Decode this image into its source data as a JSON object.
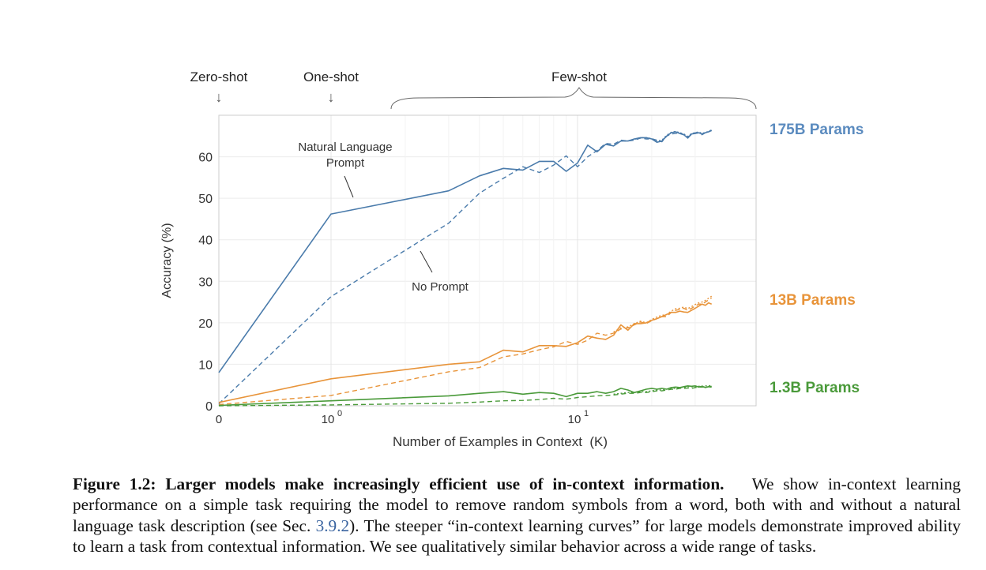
{
  "chart_data": {
    "type": "line",
    "xlabel": "Number of Examples in Context  (K)",
    "ylabel": "Accuracy (%)",
    "x_scale": "symlog",
    "xlim": [
      0,
      35
    ],
    "ylim": [
      0,
      70
    ],
    "y_ticks": [
      0,
      10,
      20,
      30,
      40,
      50,
      60
    ],
    "x_ticks": [
      {
        "value": 0,
        "base": "0",
        "exp": ""
      },
      {
        "value": 1,
        "base": "10",
        "exp": "0"
      },
      {
        "value": 10,
        "base": "10",
        "exp": "1"
      }
    ],
    "grid": true,
    "regions": [
      {
        "label": "Zero-shot",
        "x": 0,
        "marker": "↓"
      },
      {
        "label": "One-shot",
        "x": 1,
        "marker": "↓"
      },
      {
        "label": "Few-shot",
        "x_range": [
          2,
          35
        ]
      }
    ],
    "annotations": [
      {
        "text_lines": [
          "Natural Language",
          "Prompt"
        ]
      },
      {
        "text_lines": [
          "No Prompt"
        ]
      }
    ],
    "models": [
      {
        "name": "175B Params",
        "color": "#4a7bab",
        "label_color": "#5b8bbf",
        "series": [
          {
            "style": "solid",
            "x": [
              0,
              1,
              3,
              4,
              5,
              6,
              7,
              8,
              9,
              10,
              11,
              12,
              13,
              14,
              15,
              16,
              17,
              18,
              19,
              20,
              21,
              22,
              23,
              24,
              25,
              26,
              27,
              28,
              29,
              30,
              31,
              32,
              33,
              34,
              35
            ],
            "y": [
              8,
              46.2,
              51.8,
              55.4,
              57.2,
              56.8,
              58.9,
              58.9,
              56.5,
              58.5,
              62.8,
              61.2,
              63.0,
              62.6,
              63.8,
              63.8,
              64.3,
              64.6,
              64.6,
              64.3,
              63.5,
              63.8,
              65.0,
              65.8,
              66.0,
              65.6,
              65.3,
              64.5,
              65.5,
              65.6,
              65.8,
              65.5,
              65.8,
              66.0,
              66.4
            ]
          },
          {
            "style": "dashed",
            "x": [
              0,
              1,
              3,
              4,
              5,
              6,
              7,
              8,
              9,
              10,
              11,
              12,
              13,
              14,
              15,
              16,
              17,
              18,
              19,
              20,
              21,
              22,
              23,
              24,
              25,
              26,
              27,
              28,
              29,
              30,
              31,
              32,
              33,
              34,
              35
            ],
            "y": [
              0.5,
              26.3,
              44.0,
              51.2,
              54.8,
              57.6,
              56.2,
              58.0,
              60.2,
              57.6,
              60.0,
              61.5,
              63.2,
              63.0,
              64.0,
              63.8,
              64.0,
              64.5,
              64.3,
              64.3,
              64.0,
              63.6,
              65.0,
              65.5,
              65.6,
              65.8,
              65.3,
              64.8,
              65.3,
              65.8,
              65.7,
              65.3,
              65.8,
              66.0,
              66.3
            ]
          },
          {
            "style": "dotted",
            "x": [
              15,
              16,
              17,
              18,
              19,
              20,
              21,
              22,
              23,
              24,
              25,
              26,
              27,
              28,
              29,
              30,
              31,
              32,
              33,
              34,
              35
            ],
            "y": [
              63.8,
              63.8,
              64.2,
              64.6,
              64.6,
              64.4,
              63.8,
              64.0,
              65.2,
              65.9,
              66.1,
              65.8,
              65.5,
              64.9,
              65.6,
              65.8,
              66.0,
              65.6,
              65.9,
              66.1,
              66.5
            ]
          }
        ]
      },
      {
        "name": "13B Params",
        "color": "#e8943a",
        "label_color": "#e8943a",
        "series": [
          {
            "style": "solid",
            "x": [
              0,
              1,
              3,
              4,
              5,
              6,
              7,
              8,
              9,
              10,
              11,
              12,
              13,
              14,
              15,
              16,
              17,
              18,
              19,
              20,
              21,
              22,
              23,
              24,
              25,
              26,
              27,
              28,
              29,
              30,
              31,
              32,
              33,
              34,
              35
            ],
            "y": [
              0.8,
              6.5,
              10.0,
              10.6,
              13.4,
              13.0,
              14.5,
              14.5,
              14.3,
              15.2,
              16.8,
              16.3,
              16.0,
              17.0,
              19.5,
              18.2,
              19.8,
              19.8,
              20.0,
              20.6,
              21.0,
              21.5,
              22.0,
              22.5,
              22.5,
              22.8,
              22.6,
              22.5,
              23.0,
              23.5,
              24.0,
              24.5,
              24.2,
              24.8,
              24.5
            ]
          },
          {
            "style": "dashed",
            "x": [
              0,
              1,
              3,
              4,
              5,
              6,
              7,
              8,
              9,
              10,
              11,
              12,
              13,
              14,
              15,
              16,
              17,
              18,
              19,
              20,
              21,
              22,
              23,
              24,
              25,
              26,
              27,
              28,
              29,
              30,
              31,
              32,
              33,
              34,
              35
            ],
            "y": [
              0.3,
              2.5,
              8.2,
              9.2,
              11.8,
              12.5,
              13.5,
              14.2,
              15.5,
              14.8,
              15.8,
              17.5,
              17.0,
              17.5,
              18.5,
              18.8,
              19.5,
              20.2,
              19.8,
              20.5,
              21.0,
              21.5,
              21.5,
              22.5,
              23.0,
              23.2,
              23.5,
              23.0,
              23.5,
              24.0,
              24.5,
              24.5,
              25.0,
              25.5,
              26.0
            ]
          },
          {
            "style": "dotted",
            "x": [
              14,
              15,
              16,
              17,
              18,
              19,
              20,
              21,
              22,
              23,
              24,
              25,
              26,
              27,
              28,
              29,
              30,
              31,
              32,
              33,
              34,
              35
            ],
            "y": [
              17.8,
              18.8,
              19.0,
              19.8,
              20.4,
              20.0,
              20.8,
              21.4,
              21.8,
              22.0,
              22.8,
              23.4,
              23.5,
              23.8,
              23.4,
              23.9,
              24.4,
              24.8,
              25.0,
              25.4,
              25.9,
              26.4
            ]
          }
        ]
      },
      {
        "name": "1.3B Params",
        "color": "#4a9a3a",
        "label_color": "#4a9a3a",
        "series": [
          {
            "style": "solid",
            "x": [
              0,
              1,
              3,
              4,
              5,
              6,
              7,
              8,
              9,
              10,
              11,
              12,
              13,
              14,
              15,
              16,
              17,
              18,
              19,
              20,
              21,
              22,
              23,
              24,
              25,
              26,
              27,
              28,
              29,
              30,
              31,
              32,
              33,
              34,
              35
            ],
            "y": [
              0.1,
              1.2,
              2.4,
              3.0,
              3.4,
              2.8,
              3.2,
              3.0,
              2.2,
              3.0,
              3.0,
              3.4,
              3.0,
              3.4,
              4.2,
              3.8,
              3.2,
              3.6,
              4.0,
              4.2,
              4.0,
              4.2,
              4.0,
              4.4,
              4.5,
              4.4,
              4.6,
              4.8,
              4.7,
              4.8,
              4.5,
              4.7,
              4.4,
              4.6,
              4.5
            ]
          },
          {
            "style": "dashed",
            "x": [
              0,
              1,
              3,
              4,
              5,
              6,
              7,
              8,
              9,
              10,
              11,
              12,
              13,
              14,
              15,
              16,
              17,
              18,
              19,
              20,
              21,
              22,
              23,
              24,
              25,
              26,
              27,
              28,
              29,
              30,
              31,
              32,
              33,
              34,
              35
            ],
            "y": [
              0.0,
              0.2,
              0.6,
              0.9,
              1.2,
              1.3,
              1.5,
              1.8,
              1.6,
              2.0,
              2.2,
              2.4,
              2.5,
              2.6,
              2.8,
              3.0,
              3.0,
              3.2,
              3.2,
              3.4,
              3.6,
              3.6,
              3.8,
              4.0,
              4.0,
              4.2,
              4.2,
              4.3,
              4.2,
              4.4,
              4.5,
              4.5,
              4.6,
              4.6,
              4.7
            ]
          },
          {
            "style": "dotted",
            "x": [
              14,
              15,
              16,
              17,
              18,
              19,
              20,
              21,
              22,
              23,
              24,
              25,
              26,
              27,
              28,
              29,
              30,
              31,
              32,
              33,
              34,
              35
            ],
            "y": [
              2.8,
              3.0,
              3.2,
              3.2,
              3.4,
              3.4,
              3.6,
              3.8,
              3.8,
              4.0,
              4.2,
              4.2,
              4.4,
              4.4,
              4.6,
              4.6,
              4.5,
              4.7,
              4.7,
              4.8,
              4.8,
              4.9
            ]
          }
        ]
      }
    ]
  },
  "caption": {
    "label": "Figure 1.2:",
    "title": "Larger models make increasingly efficient use of in-context information.",
    "body_1": "We show in-context learning performance on a simple task requiring the model to remove random symbols from a word, both with and without a natural language task description (see Sec. ",
    "ref": "3.9.2",
    "body_2": "). The steeper “in-context learning curves” for large models demonstrate improved ability to learn a task from contextual information. We see qualitatively similar behavior across a wide range of tasks."
  }
}
